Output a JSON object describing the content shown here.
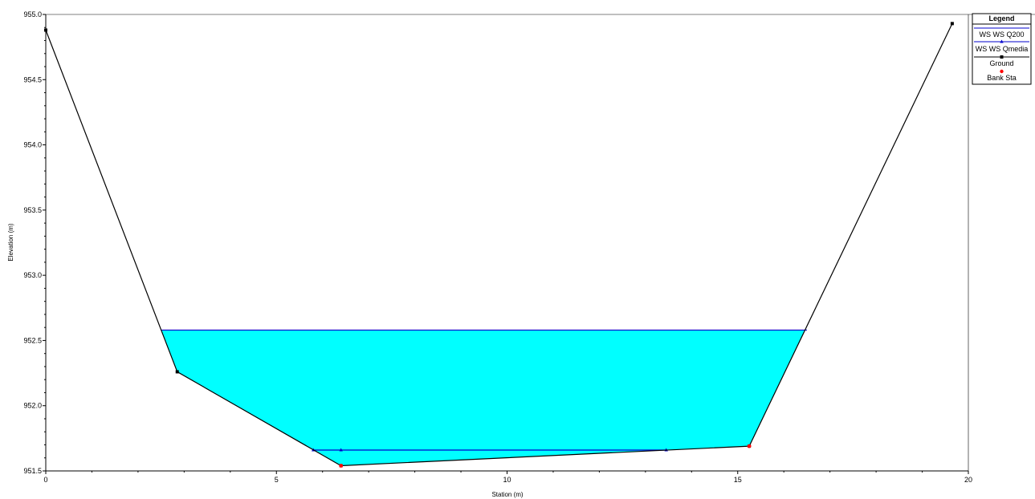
{
  "chart_data": {
    "type": "line",
    "xlabel": "Station (m)",
    "ylabel": "Elevation (m)",
    "xlim": [
      0,
      20
    ],
    "ylim": [
      951.5,
      955.0
    ],
    "x_ticks": [
      "0",
      "5",
      "10",
      "15",
      "20"
    ],
    "x_tick_values": [
      0,
      5,
      10,
      15,
      20
    ],
    "y_ticks": [
      "951.5",
      "952.0",
      "952.5",
      "953.0",
      "953.5",
      "954.0",
      "954.5",
      "955.0"
    ],
    "y_tick_values": [
      951.5,
      952.0,
      952.5,
      953.0,
      953.5,
      954.0,
      954.5,
      955.0
    ],
    "grid": false,
    "legend": {
      "title": "Legend",
      "placement": "top-right, outside plot",
      "entries": [
        "WS WS Q200",
        "WS WS Qmedia",
        "Ground",
        "Bank Sta"
      ]
    },
    "series": [
      {
        "name": "WS WS Q200",
        "kind": "water-surface",
        "elevation": 952.58,
        "x_range": [
          2.5,
          16.5
        ],
        "color": "#0000cc",
        "fill": "#00ffff"
      },
      {
        "name": "WS WS Qmedia",
        "kind": "water-surface",
        "elevation": 951.66,
        "x_range": [
          5.8,
          13.45
        ],
        "color": "#0000cc",
        "fill": "#00ffff"
      },
      {
        "name": "Ground",
        "kind": "ground",
        "color": "#000000",
        "x": [
          0,
          2.85,
          6.4,
          15.25,
          19.65
        ],
        "y": [
          954.88,
          952.26,
          951.54,
          951.69,
          954.93
        ]
      },
      {
        "name": "Bank Sta",
        "kind": "bank",
        "color": "#ff0000",
        "x": [
          6.4,
          15.25
        ],
        "y": [
          951.54,
          951.69
        ]
      }
    ]
  }
}
